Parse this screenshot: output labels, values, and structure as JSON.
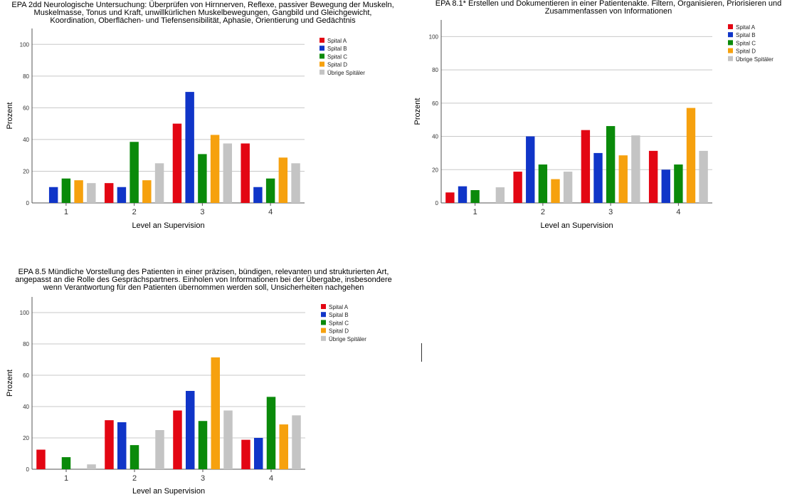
{
  "colors": {
    "Spital A": "#e30613",
    "Spital B": "#1035c8",
    "Spital C": "#0a8a0a",
    "Spital D": "#f6a10e",
    "Übrige Spitäler": "#c4c4c4",
    "grid": "#c8c8c8",
    "axis": "#555555"
  },
  "chart_data": [
    {
      "type": "bar",
      "title": "EPA 2dd Neurologische Untersuchung: Überprüfen von Hirnnerven, Reflexe, passiver Bewegung der Muskeln, Muskelmasse, Tonus und Kraft, unwillkürlichen Muskelbewegungen, Gangbild und Gleichgewicht, Koordination, Oberflächen- und Tiefensensibilität, Aphasie, Orientierung und Gedächtnis",
      "title_lines": [
        "EPA 2dd Neurologische Untersuchung: Überprüfen von Hirnnerven, Reflexe, passiver Bewegung der Muskeln,",
        "Muskelmasse, Tonus und Kraft, unwillkürlichen Muskelbewegungen, Gangbild und Gleichgewicht,",
        "Koordination, Oberflächen- und Tiefensensibilität, Aphasie, Orientierung und Gedächtnis"
      ],
      "xlabel": "Level an Supervision",
      "ylabel": "Prozent",
      "ylim": [
        0,
        110
      ],
      "yticks": [
        0,
        20,
        40,
        60,
        80,
        100
      ],
      "categories": [
        "1",
        "2",
        "3",
        "4"
      ],
      "legend_position": "top-right",
      "grid": true,
      "series": [
        {
          "name": "Spital A",
          "values": [
            0,
            12.5,
            50,
            37.5
          ]
        },
        {
          "name": "Spital B",
          "values": [
            10,
            10,
            70,
            10
          ]
        },
        {
          "name": "Spital C",
          "values": [
            15.4,
            38.5,
            30.8,
            15.4
          ]
        },
        {
          "name": "Spital D",
          "values": [
            14.3,
            14.3,
            42.9,
            28.6
          ]
        },
        {
          "name": "Übrige Spitäler",
          "values": [
            12.5,
            25,
            37.5,
            25
          ]
        }
      ]
    },
    {
      "type": "bar",
      "title": "EPA 8.1* Erstellen und Dokumentieren in einer Patientenakte. Filtern, Organisieren, Priorisieren und Zusammenfassen von Informationen",
      "title_lines": [
        "EPA 8.1* Erstellen und Dokumentieren in einer Patientenakte. Filtern, Organisieren, Priorisieren und",
        "Zusammenfassen von Informationen"
      ],
      "xlabel": "Level an Supervision",
      "ylabel": "Prozent",
      "ylim": [
        0,
        110
      ],
      "yticks": [
        0,
        20,
        40,
        60,
        80,
        100
      ],
      "categories": [
        "1",
        "2",
        "3",
        "4"
      ],
      "legend_position": "top-right",
      "grid": true,
      "series": [
        {
          "name": "Spital A",
          "values": [
            6.3,
            18.8,
            43.8,
            31.3
          ]
        },
        {
          "name": "Spital B",
          "values": [
            10,
            40,
            30,
            20
          ]
        },
        {
          "name": "Spital C",
          "values": [
            7.7,
            23.1,
            46.2,
            23.1
          ]
        },
        {
          "name": "Spital D",
          "values": [
            0,
            14.3,
            28.6,
            57.1
          ]
        },
        {
          "name": "Übrige Spitäler",
          "values": [
            9.4,
            18.8,
            40.6,
            31.3
          ]
        }
      ]
    },
    {
      "type": "bar",
      "title": "EPA 8.5 Mündliche Vorstellung des Patienten in einer präzisen, bündigen, relevanten und strukturierten Art, angepasst an die Rolle des Gesprächspartners. Einholen von Informationen bei der Übergabe, insbesondere wenn Verantwortung für den Patienten übernommen werden soll, Unsicherheiten nachgehen",
      "title_lines": [
        "EPA 8.5 Mündliche Vorstellung des Patienten in einer präzisen, bündigen, relevanten und strukturierten Art,",
        "angepasst an die Rolle des Gesprächspartners. Einholen von Informationen bei der Übergabe, insbesondere",
        "wenn Verantwortung für den Patienten übernommen werden soll, Unsicherheiten nachgehen"
      ],
      "xlabel": "Level an Supervision",
      "ylabel": "Prozent",
      "ylim": [
        0,
        110
      ],
      "yticks": [
        0,
        20,
        40,
        60,
        80,
        100
      ],
      "categories": [
        "1",
        "2",
        "3",
        "4"
      ],
      "legend_position": "top-right",
      "grid": true,
      "series": [
        {
          "name": "Spital A",
          "values": [
            12.5,
            31.3,
            37.5,
            18.8
          ]
        },
        {
          "name": "Spital B",
          "values": [
            0,
            30,
            50,
            20
          ]
        },
        {
          "name": "Spital C",
          "values": [
            7.7,
            15.4,
            30.8,
            46.2
          ]
        },
        {
          "name": "Spital D",
          "values": [
            0,
            0,
            71.4,
            28.6
          ]
        },
        {
          "name": "Übrige Spitäler",
          "values": [
            3.1,
            25,
            37.5,
            34.4
          ]
        }
      ]
    }
  ]
}
